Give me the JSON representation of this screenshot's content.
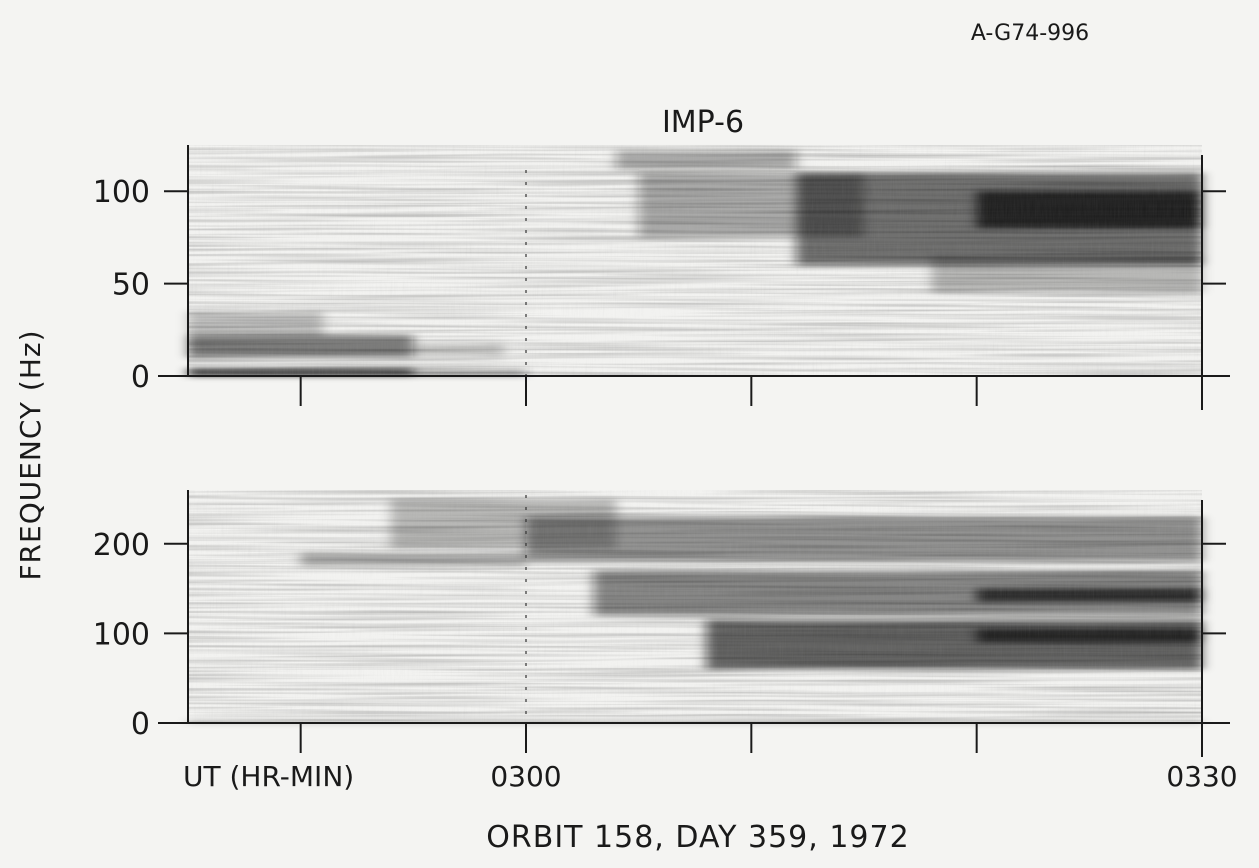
{
  "figure": {
    "id_label": "A-G74-996",
    "title": "IMP-6",
    "ylabel": "FREQUENCY (Hz)",
    "caption": "ORBIT 158, DAY 359, 1972"
  },
  "chart_data": [
    {
      "type": "heatmap",
      "title": "IMP-6",
      "ylabel": "FREQUENCY (Hz)",
      "xlabel": "UT (HR-MIN)",
      "xlim": [
        -15,
        30
      ],
      "ylim": [
        0,
        125
      ],
      "yticks": [
        0,
        50,
        100
      ],
      "ytick_labels": [
        "0",
        "50",
        "100"
      ],
      "right_ticks": [
        50,
        100
      ],
      "xticks": [
        -10,
        0,
        10,
        20,
        30
      ],
      "xtick_labels": [
        "",
        "0300",
        "",
        "",
        "0330"
      ],
      "time_marker": 0,
      "bands": [
        {
          "t0": -15,
          "t1": -5,
          "f0": 0,
          "f1": 4,
          "intensity": 0.85
        },
        {
          "t0": -5,
          "t1": 0,
          "f0": 0,
          "f1": 3,
          "intensity": 0.45
        },
        {
          "t0": -15,
          "t1": -5,
          "f0": 10,
          "f1": 22,
          "intensity": 0.55
        },
        {
          "t0": -15,
          "t1": -9,
          "f0": 22,
          "f1": 35,
          "intensity": 0.22
        },
        {
          "t0": -5,
          "t1": -1,
          "f0": 10,
          "f1": 18,
          "intensity": 0.18
        },
        {
          "t0": 4,
          "t1": 12,
          "f0": 112,
          "f1": 122,
          "intensity": 0.35
        },
        {
          "t0": 5,
          "t1": 15,
          "f0": 75,
          "f1": 110,
          "intensity": 0.35
        },
        {
          "t0": 12,
          "t1": 30,
          "f0": 60,
          "f1": 110,
          "intensity": 0.6
        },
        {
          "t0": 20,
          "t1": 30,
          "f0": 80,
          "f1": 100,
          "intensity": 0.8
        },
        {
          "t0": 18,
          "t1": 30,
          "f0": 45,
          "f1": 65,
          "intensity": 0.25
        }
      ]
    },
    {
      "type": "heatmap",
      "ylabel": "FREQUENCY (Hz)",
      "xlabel": "UT (HR-MIN)",
      "xlim": [
        -15,
        30
      ],
      "ylim": [
        0,
        260
      ],
      "yticks": [
        0,
        100,
        200
      ],
      "ytick_labels": [
        "0",
        "100",
        "200"
      ],
      "right_ticks": [
        100,
        200
      ],
      "xticks": [
        -10,
        0,
        10,
        20,
        30
      ],
      "xtick_labels": [
        "",
        "0300",
        "",
        "",
        "0330"
      ],
      "time_marker": 0,
      "bands": [
        {
          "t0": -10,
          "t1": 0,
          "f0": 175,
          "f1": 190,
          "intensity": 0.3
        },
        {
          "t0": -6,
          "t1": 4,
          "f0": 195,
          "f1": 250,
          "intensity": 0.25
        },
        {
          "t0": 0,
          "t1": 30,
          "f0": 180,
          "f1": 230,
          "intensity": 0.45
        },
        {
          "t0": 3,
          "t1": 30,
          "f0": 120,
          "f1": 170,
          "intensity": 0.5
        },
        {
          "t0": 8,
          "t1": 30,
          "f0": 60,
          "f1": 115,
          "intensity": 0.65
        },
        {
          "t0": 20,
          "t1": 30,
          "f0": 135,
          "f1": 150,
          "intensity": 0.75
        },
        {
          "t0": 20,
          "t1": 30,
          "f0": 90,
          "f1": 105,
          "intensity": 0.75
        },
        {
          "t0": -15,
          "t1": 30,
          "f0": 0,
          "f1": 3,
          "intensity": 0.3
        }
      ]
    }
  ]
}
